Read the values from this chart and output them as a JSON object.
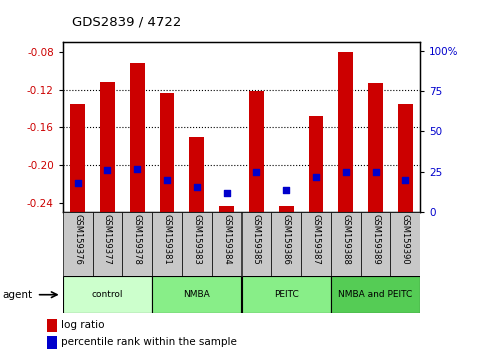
{
  "title": "GDS2839 / 4722",
  "samples": [
    "GSM159376",
    "GSM159377",
    "GSM159378",
    "GSM159381",
    "GSM159383",
    "GSM159384",
    "GSM159385",
    "GSM159386",
    "GSM159387",
    "GSM159388",
    "GSM159389",
    "GSM159390"
  ],
  "log_ratio": [
    -0.135,
    -0.112,
    -0.092,
    -0.123,
    -0.17,
    -0.243,
    -0.121,
    -0.243,
    -0.148,
    -0.08,
    -0.113,
    -0.135
  ],
  "percentile_rank": [
    18,
    26,
    27,
    20,
    16,
    12,
    25,
    14,
    22,
    25,
    25,
    20
  ],
  "ylim_left": [
    -0.25,
    -0.07
  ],
  "ylim_right": [
    0,
    105
  ],
  "yticks_left": [
    -0.24,
    -0.2,
    -0.16,
    -0.12,
    -0.08
  ],
  "yticks_right": [
    0,
    25,
    50,
    75,
    100
  ],
  "ytick_labels_right": [
    "0",
    "25",
    "50",
    "75",
    "100%"
  ],
  "group_colors": [
    "#ccffcc",
    "#88ee88",
    "#88ee88",
    "#55cc55"
  ],
  "group_labels": [
    "control",
    "NMBA",
    "PEITC",
    "NMBA and PEITC"
  ],
  "group_ranges": [
    [
      0,
      3
    ],
    [
      3,
      6
    ],
    [
      6,
      9
    ],
    [
      9,
      12
    ]
  ],
  "bar_color": "#cc0000",
  "dot_color": "#0000cc",
  "bar_width": 0.5,
  "plot_bg": "#ffffff",
  "left_label_color": "#cc0000",
  "right_label_color": "#0000cc",
  "legend_red": "log ratio",
  "legend_blue": "percentile rank within the sample",
  "xlabels_bg": "#c8c8c8",
  "agent_label": "agent"
}
